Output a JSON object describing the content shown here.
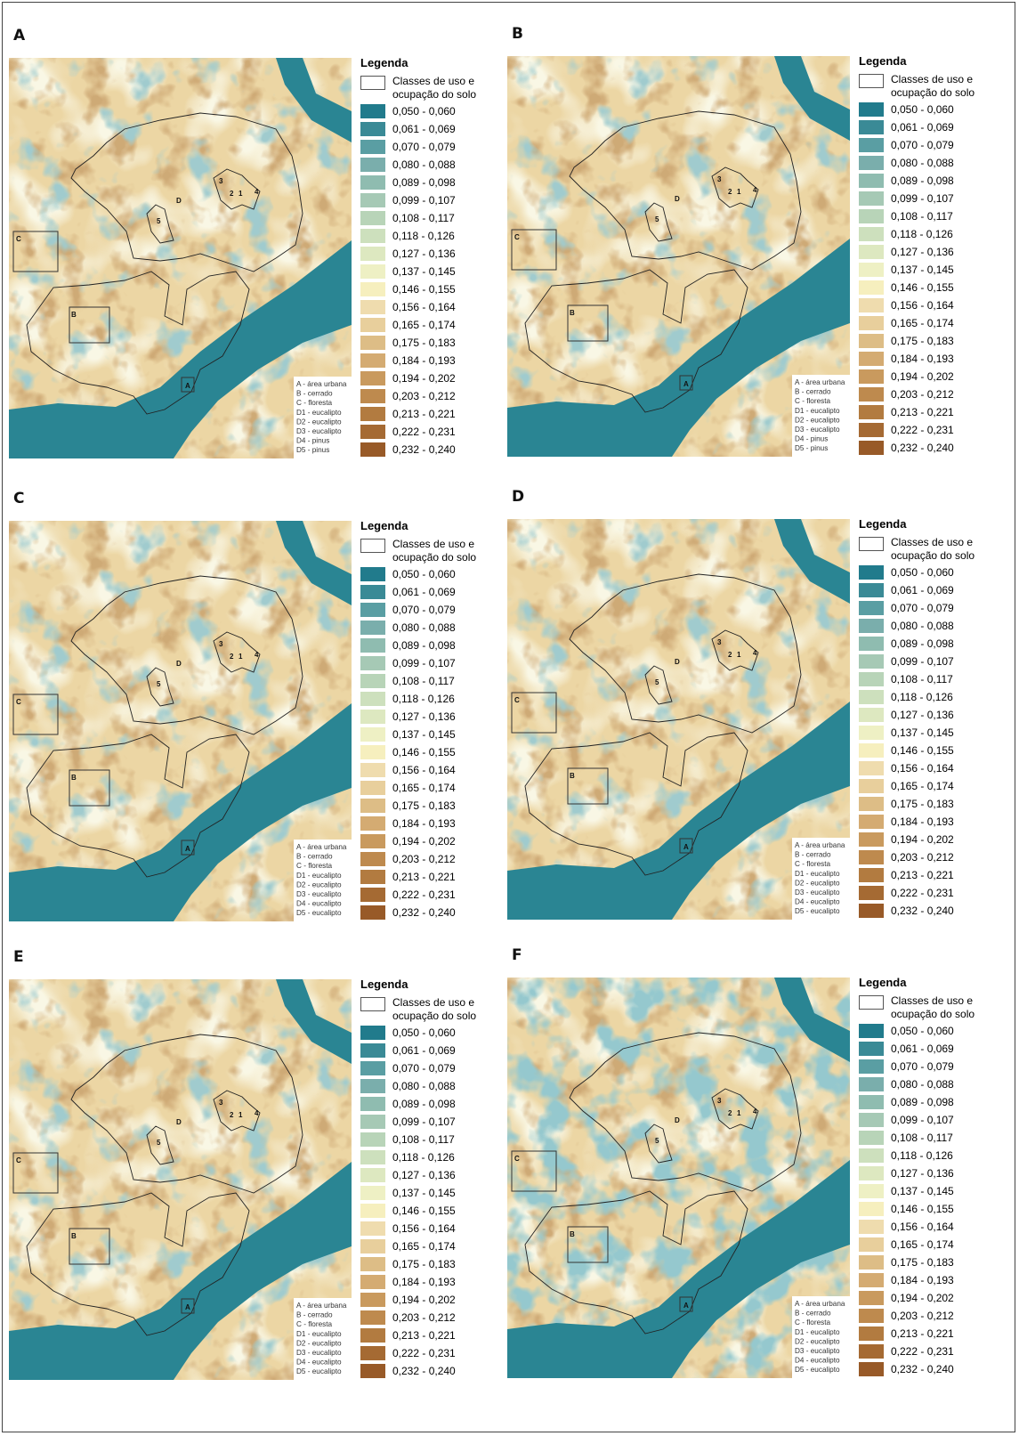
{
  "class_colors": [
    "#217b8c",
    "#3a8a96",
    "#5a9ea3",
    "#7aaeac",
    "#8fbcb0",
    "#a6c9b5",
    "#b8d4b8",
    "#cde0bd",
    "#dde8c0",
    "#eef0c4",
    "#f6efbe",
    "#efdcae",
    "#e8cf9c",
    "#ddbd86",
    "#d4ab72",
    "#c99a5e",
    "#be8a4e",
    "#b27b40",
    "#a56a33",
    "#985a28"
  ],
  "panels": [
    {
      "label": "A",
      "map_labels": [
        "A",
        "B",
        "C",
        "D",
        "1",
        "2",
        "3",
        "4",
        "5"
      ],
      "key": [
        "A - área urbana",
        "B - cerrado",
        "C - floresta",
        "D1 - eucalipto",
        "D2 - eucalipto",
        "D3 - eucalipto",
        "D4 - pinus",
        "D5 - pinus"
      ],
      "legend": {
        "title": "Legenda",
        "header": "Classes de uso e ocupação do solo",
        "classes": [
          "0,050 - 0,060",
          "0,061 - 0,069",
          "0,070 - 0,079",
          "0,080 - 0,088",
          "0,089 - 0,098",
          "0,099 - 0,107",
          "0,108 - 0,117",
          "0,118 - 0,126",
          "0,127 - 0,136",
          "0,137 - 0,145",
          "0,146 - 0,155",
          "0,156 - 0,164",
          "0,165 - 0,174",
          "0,175 - 0,183",
          "0,184 - 0,193",
          "0,194 - 0,202",
          "0,203 - 0,212",
          "0,213 - 0,221",
          "0,222 - 0,231",
          "0,232 - 0,240"
        ]
      }
    },
    {
      "label": "B",
      "map_labels": [
        "A",
        "B",
        "C",
        "D",
        "1",
        "2",
        "3",
        "4",
        "5"
      ],
      "key": [
        "A - área urbana",
        "B - cerrado",
        "C - floresta",
        "D1 - eucalipto",
        "D2 - eucalipto",
        "D3 - eucalipto",
        "D4 - pinus",
        "D5 - pinus"
      ],
      "legend": {
        "title": "Legenda",
        "header": "Classes de uso e ocupação do solo",
        "classes": [
          "0,050 - 0,060",
          "0,061 - 0,069",
          "0,070 - 0,079",
          "0,080 - 0,088",
          "0,089 - 0,098",
          "0,099 - 0,107",
          "0,108 - 0,117",
          "0,118 - 0,126",
          "0,127 - 0,136",
          "0,137 - 0,145",
          "0,146 - 0,155",
          "0,156 - 0,164",
          "0,165 - 0,174",
          "0,175 - 0,183",
          "0,184 - 0,193",
          "0,194 - 0,202",
          "0,203 - 0,212",
          "0,213 - 0,221",
          "0,222 - 0,231",
          "0,232 - 0,240"
        ]
      }
    },
    {
      "label": "C",
      "map_labels": [
        "A",
        "B",
        "C",
        "D",
        "1",
        "2",
        "3",
        "4",
        "5"
      ],
      "key": [
        "A - área urbana",
        "B - cerrado",
        "C - floresta",
        "D1 - eucalipto",
        "D2 - eucalipto",
        "D3 - eucalipto",
        "D4 - eucalipto",
        "D5 - eucalipto"
      ],
      "legend": {
        "title": "Legenda",
        "header": "Classes de uso e ocupação do solo",
        "classes": [
          "0,050 - 0,060",
          "0,061 - 0,069",
          "0,070 - 0,079",
          "0,080 - 0,088",
          "0,089 - 0,098",
          "0,099 - 0,107",
          "0,108 - 0,117",
          "0,118 - 0,126",
          "0,127 - 0,136",
          "0,137 - 0,145",
          "0,146 - 0,155",
          "0,156 - 0,164",
          "0,165 - 0,174",
          "0,175 - 0,183",
          "0,184 - 0,193",
          "0,194 - 0,202",
          "0,203 - 0,212",
          "0,213 - 0,221",
          "0,222 - 0,231",
          "0,232 - 0,240"
        ]
      }
    },
    {
      "label": "D",
      "map_labels": [
        "A",
        "B",
        "C",
        "D",
        "1",
        "2",
        "3",
        "4",
        "5"
      ],
      "key": [
        "A - área urbana",
        "B - cerrado",
        "C - floresta",
        "D1 - eucalipto",
        "D2 - eucalipto",
        "D3 - eucalipto",
        "D4 - eucalipto",
        "D5 - eucalipto"
      ],
      "legend": {
        "title": "Legenda",
        "header": "Classes de uso e ocupação do solo",
        "classes": [
          "0,050 - 0,060",
          "0,061 - 0,069",
          "0,070 - 0,079",
          "0,080 - 0,088",
          "0,089 - 0,098",
          "0,099 - 0,107",
          "0,108 - 0,117",
          "0,118 - 0,126",
          "0,127 - 0,136",
          "0,137 - 0,145",
          "0,146 - 0,155",
          "0,156 - 0,164",
          "0,165 - 0,174",
          "0,175 - 0,183",
          "0,184 - 0,193",
          "0,194 - 0,202",
          "0,203 - 0,212",
          "0,213 - 0,221",
          "0,222 - 0,231",
          "0,232 - 0,240"
        ]
      }
    },
    {
      "label": "E",
      "map_labels": [
        "A",
        "B",
        "C",
        "D",
        "1",
        "2",
        "3",
        "4",
        "5"
      ],
      "key": [
        "A - área urbana",
        "B - cerrado",
        "C - floresta",
        "D1 - eucalipto",
        "D2 - eucalipto",
        "D3 - eucalipto",
        "D4 - eucalipto",
        "D5 - eucalipto"
      ],
      "legend": {
        "title": "Legenda",
        "header": "Classes de uso e ocupação do solo",
        "classes": [
          "0,050 - 0,060",
          "0,061 - 0,069",
          "0,070 - 0,079",
          "0,080 - 0,088",
          "0,089 - 0,098",
          "0,099 - 0,107",
          "0,108 - 0,117",
          "0,118 - 0,126",
          "0,127 - 0,136",
          "0,137 - 0,145",
          "0,146 - 0,155",
          "0,156 - 0,164",
          "0,165 - 0,174",
          "0,175 - 0,183",
          "0,184 - 0,193",
          "0,194 - 0,202",
          "0,203 - 0,212",
          "0,213 - 0,221",
          "0,222 - 0,231",
          "0,232 - 0,240"
        ]
      }
    },
    {
      "label": "F",
      "map_labels": [
        "A",
        "B",
        "C",
        "D",
        "1",
        "2",
        "3",
        "4",
        "5"
      ],
      "key": [
        "A - área urbana",
        "B - cerrado",
        "C - floresta",
        "D1 - eucalipto",
        "D2 - eucalipto",
        "D3 - eucalipto",
        "D4 - eucalipto",
        "D5 - eucalipto"
      ],
      "legend": {
        "title": "Legenda",
        "header": "Classes de uso e ocupação do solo",
        "classes": [
          "0,050 - 0,060",
          "0,061 - 0,069",
          "0,070 - 0,079",
          "0,080 - 0,088",
          "0,089 - 0,098",
          "0,099 - 0,107",
          "0,108 - 0,117",
          "0,118 - 0,126",
          "0,127 - 0,136",
          "0,137 - 0,145",
          "0,146 - 0,155",
          "0,156 - 0,164",
          "0,165 - 0,174",
          "0,175 - 0,183",
          "0,184 - 0,193",
          "0,194 - 0,202",
          "0,203 - 0,212",
          "0,213 - 0,221",
          "0,222 - 0,231",
          "0,232 - 0,240"
        ]
      }
    }
  ]
}
